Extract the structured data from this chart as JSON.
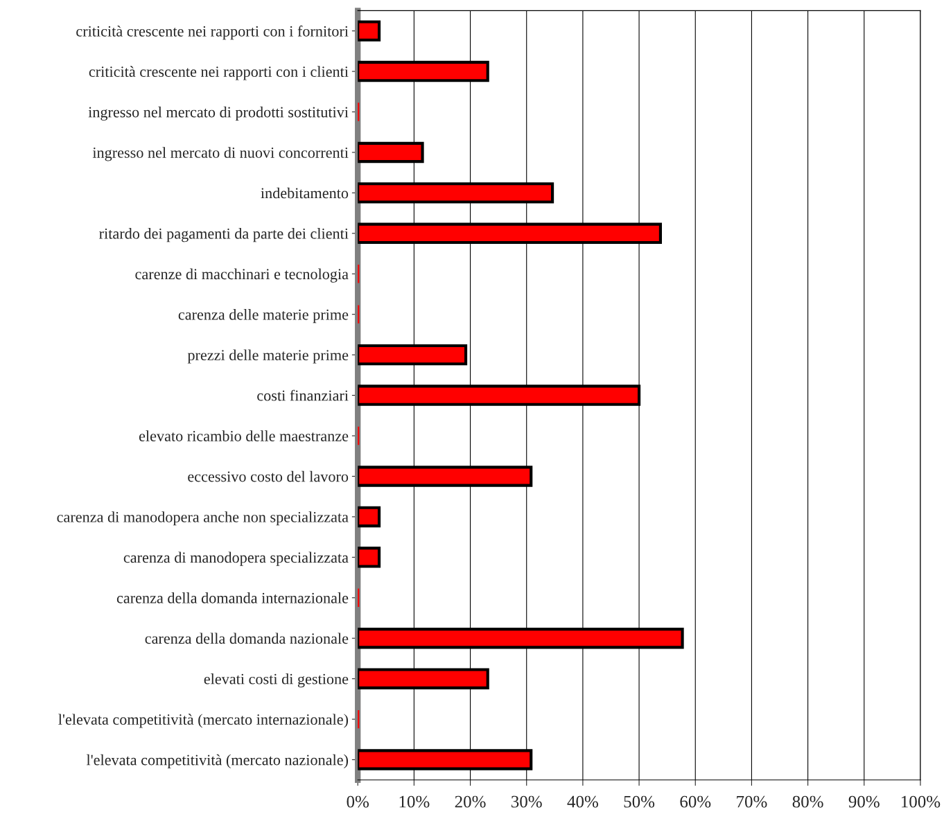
{
  "chart_data": {
    "type": "bar",
    "orientation": "horizontal",
    "categories": [
      "criticità crescente nei rapporti con i fornitori",
      "criticità crescente nei rapporti con i clienti",
      "ingresso nel mercato di prodotti sostitutivi",
      "ingresso nel mercato di nuovi concorrenti",
      "indebitamento",
      "ritardo dei pagamenti da parte dei clienti",
      "carenze di macchinari e tecnologia",
      "carenza delle materie prime",
      "prezzi delle materie prime",
      "costi finanziari",
      "elevato ricambio delle maestranze",
      "eccessivo costo del lavoro",
      "carenza di manodopera anche non specializzata",
      "carenza di manodopera specializzata",
      "carenza della domanda internazionale",
      "carenza della domanda nazionale",
      "elevati costi di gestione",
      "l'elevata competitività (mercato internazionale)",
      "l'elevata competitività (mercato nazionale)"
    ],
    "values": [
      3.8,
      23.1,
      0,
      11.5,
      34.6,
      53.8,
      0,
      0,
      19.2,
      50.0,
      0,
      30.8,
      3.8,
      3.8,
      0,
      57.7,
      23.1,
      0,
      30.8
    ],
    "color": "#ff0000",
    "xlim": [
      0,
      100
    ],
    "xticks": [
      {
        "value": 0,
        "label": "0%"
      },
      {
        "value": 10,
        "label": "10%"
      },
      {
        "value": 20,
        "label": "20%"
      },
      {
        "value": 30,
        "label": "30%"
      },
      {
        "value": 40,
        "label": "40%"
      },
      {
        "value": 50,
        "label": "50%"
      },
      {
        "value": 60,
        "label": "60%"
      },
      {
        "value": 70,
        "label": "70%"
      },
      {
        "value": 80,
        "label": "80%"
      },
      {
        "value": 90,
        "label": "90%"
      },
      {
        "value": 100,
        "label": "100%"
      }
    ],
    "grid": "x"
  }
}
